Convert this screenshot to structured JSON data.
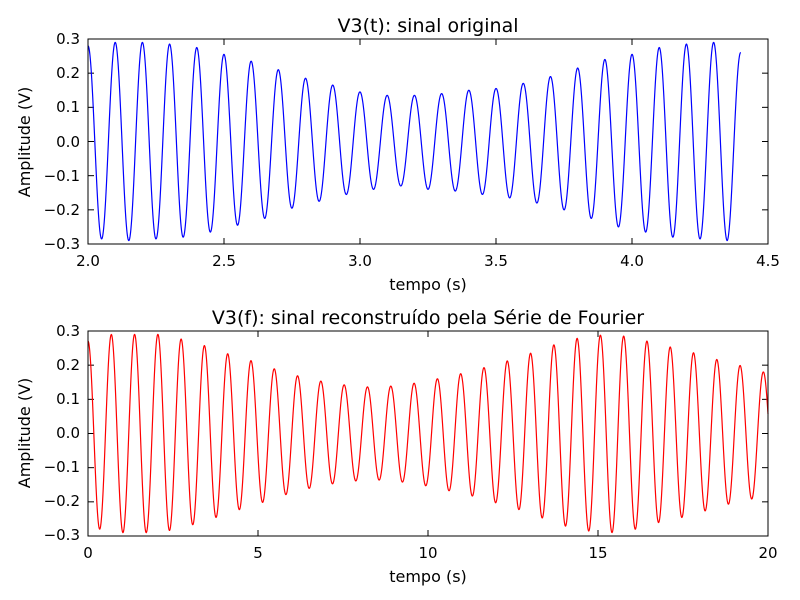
{
  "chart_data": [
    {
      "type": "line",
      "title": "V3(t): sinal original",
      "xlabel": "tempo (s)",
      "ylabel": "Amplitude (V)",
      "xlim": [
        2.0,
        4.5
      ],
      "ylim": [
        -0.3,
        0.3
      ],
      "x_ticks": [
        "2.0",
        "2.5",
        "3.0",
        "3.5",
        "4.0",
        "4.5"
      ],
      "y_ticks": [
        "0.3",
        "0.2",
        "0.1",
        "0.0",
        "−0.1",
        "−0.2",
        "−0.3"
      ],
      "grid": false,
      "legend": "none",
      "series": [
        {
          "color": "#0000ff",
          "x_range": [
            2.0,
            4.4
          ],
          "x": [
            2.0,
            2.05,
            2.1,
            2.15,
            2.2,
            2.25,
            2.3,
            2.35,
            2.4,
            2.45,
            2.5,
            2.55,
            2.6,
            2.65,
            2.7,
            2.75,
            2.8,
            2.85,
            2.9,
            2.95,
            3.0,
            3.05,
            3.1,
            3.15,
            3.2,
            3.25,
            3.3,
            3.35,
            3.4,
            3.45,
            3.5,
            3.55,
            3.6,
            3.65,
            3.7,
            3.75,
            3.8,
            3.85,
            3.9,
            3.95,
            4.0,
            4.05,
            4.1,
            4.15,
            4.2,
            4.25,
            4.3,
            4.35,
            4.4
          ],
          "y": [
            0.28,
            -0.285,
            0.29,
            -0.29,
            0.29,
            -0.285,
            0.285,
            -0.28,
            0.275,
            -0.265,
            0.255,
            -0.245,
            0.235,
            -0.225,
            0.21,
            -0.195,
            0.185,
            -0.175,
            0.165,
            -0.155,
            0.145,
            -0.14,
            0.135,
            -0.13,
            0.135,
            -0.14,
            0.14,
            -0.145,
            0.15,
            -0.155,
            0.155,
            -0.165,
            0.17,
            -0.18,
            0.19,
            -0.2,
            0.215,
            -0.225,
            0.24,
            -0.25,
            0.255,
            -0.265,
            0.275,
            -0.28,
            0.285,
            -0.285,
            0.29,
            -0.29,
            0.26
          ],
          "cycle_period": 0.1
        }
      ]
    },
    {
      "type": "line",
      "title": "V3(f): sinal reconstruído pela Série de Fourier",
      "xlabel": "tempo (s)",
      "ylabel": "Amplitude (V)",
      "xlim": [
        0,
        20
      ],
      "ylim": [
        -0.3,
        0.3
      ],
      "x_ticks": [
        "0",
        "5",
        "10",
        "15",
        "20"
      ],
      "y_ticks": [
        "0.3",
        "0.2",
        "0.1",
        "0.0",
        "−0.1",
        "−0.2",
        "−0.3"
      ],
      "grid": false,
      "legend": "none",
      "series": [
        {
          "color": "#ff0000",
          "x_range": [
            0,
            20
          ],
          "x": [
            0,
            0.7,
            1.4,
            2.1,
            2.8,
            3.5,
            4.2,
            4.9,
            5.6,
            6.3,
            7.0,
            7.7,
            8.4,
            9.1,
            9.8,
            10.5,
            11.2,
            11.9,
            12.6,
            13.3,
            14.0,
            14.7,
            15.4,
            16.1,
            16.8,
            17.5,
            18.2,
            18.9,
            19.6,
            20.0
          ],
          "y": [
            0.27,
            0.29,
            0.29,
            0.29,
            0.275,
            0.255,
            0.23,
            0.21,
            0.185,
            0.165,
            0.15,
            0.14,
            0.135,
            0.14,
            0.15,
            0.165,
            0.18,
            0.2,
            0.22,
            0.245,
            0.27,
            0.285,
            0.29,
            0.28,
            0.26,
            0.245,
            0.225,
            0.205,
            0.19,
            -0.175
          ],
          "cycle_period": 0.685
        }
      ]
    }
  ]
}
